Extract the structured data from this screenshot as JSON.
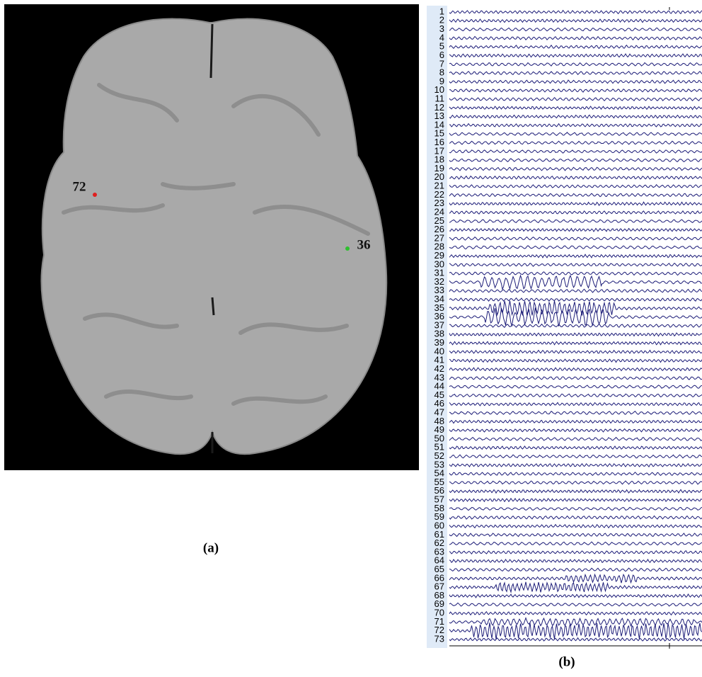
{
  "panel_a": {
    "label": "(a)",
    "electrodes": [
      "72",
      "36"
    ]
  },
  "panel_b": {
    "label": "(b)",
    "channels": [
      "1",
      "2",
      "3",
      "4",
      "5",
      "6",
      "7",
      "8",
      "9",
      "10",
      "11",
      "12",
      "13",
      "14",
      "15",
      "16",
      "17",
      "18",
      "19",
      "20",
      "21",
      "22",
      "23",
      "24",
      "25",
      "26",
      "27",
      "28",
      "29",
      "30",
      "31",
      "32",
      "33",
      "34",
      "35",
      "36",
      "37",
      "38",
      "39",
      "40",
      "41",
      "42",
      "43",
      "44",
      "45",
      "46",
      "47",
      "48",
      "49",
      "50",
      "51",
      "52",
      "53",
      "54",
      "55",
      "56",
      "57",
      "58",
      "59",
      "60",
      "61",
      "62",
      "63",
      "64",
      "65",
      "66",
      "67",
      "68",
      "69",
      "70",
      "71",
      "72",
      "73"
    ]
  }
}
